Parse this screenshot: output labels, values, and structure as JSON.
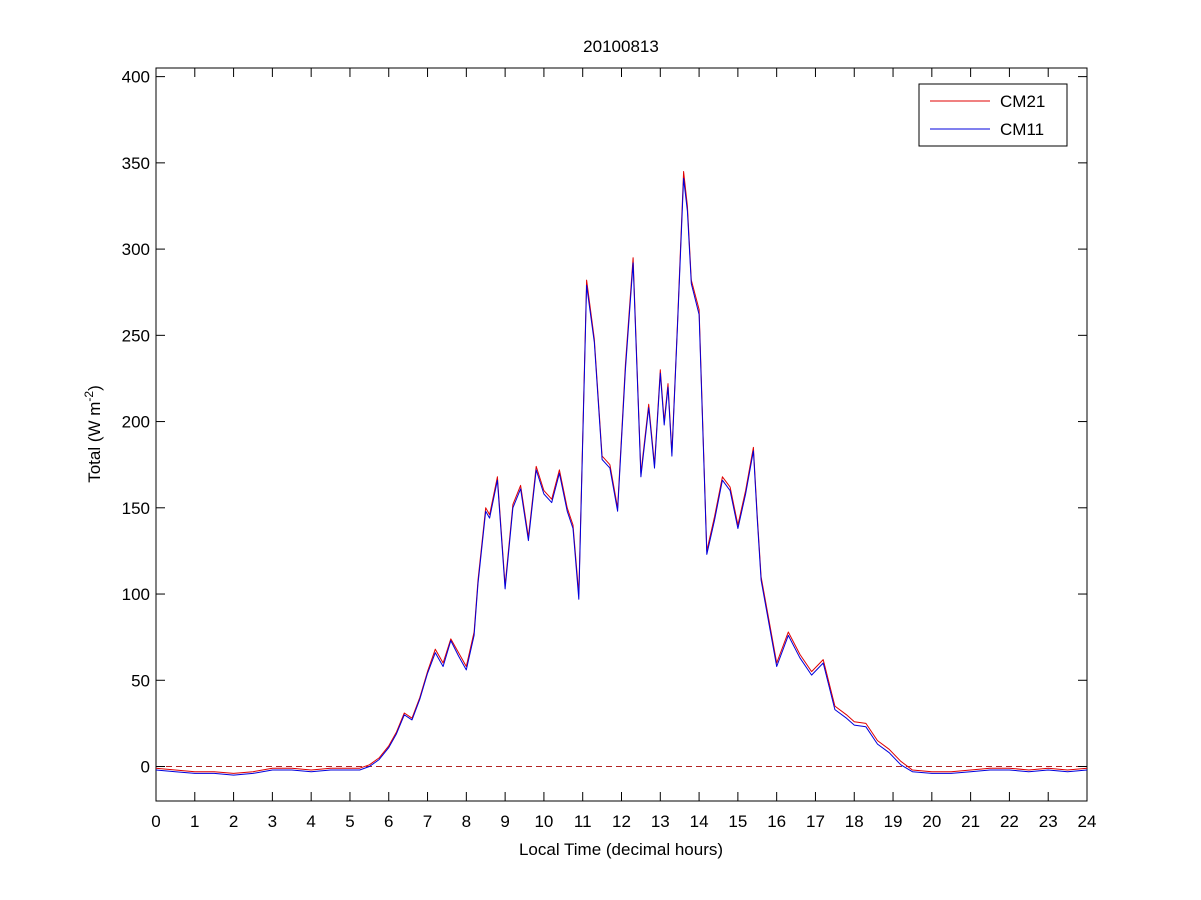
{
  "chart_data": {
    "type": "line",
    "title": "20100813",
    "xlabel": "Local Time (decimal hours)",
    "ylabel_main": "Total (W m",
    "ylabel_sup": "-2",
    "ylabel_close": ")",
    "xlim": [
      0,
      24
    ],
    "ylim": [
      -20,
      405
    ],
    "xticks": [
      0,
      1,
      2,
      3,
      4,
      5,
      6,
      7,
      8,
      9,
      10,
      11,
      12,
      13,
      14,
      15,
      16,
      17,
      18,
      19,
      20,
      21,
      22,
      23,
      24
    ],
    "yticks": [
      0,
      50,
      100,
      150,
      200,
      250,
      300,
      350,
      400
    ],
    "grid": false,
    "legend_position": "top-right",
    "reference_line": {
      "y": 0,
      "style": "dashed",
      "color": "#b22222"
    },
    "series": [
      {
        "name": "CM21",
        "color": "#e00000"
      },
      {
        "name": "CM11",
        "color": "#0000dd"
      }
    ],
    "x": [
      0,
      0.5,
      1,
      1.5,
      2,
      2.5,
      3,
      3.5,
      4,
      4.5,
      5,
      5.25,
      5.5,
      5.75,
      6,
      6.2,
      6.4,
      6.6,
      6.8,
      7,
      7.2,
      7.4,
      7.6,
      7.8,
      8,
      8.2,
      8.3,
      8.5,
      8.6,
      8.8,
      9,
      9.2,
      9.4,
      9.6,
      9.8,
      10,
      10.2,
      10.4,
      10.6,
      10.75,
      10.9,
      11.1,
      11.3,
      11.5,
      11.7,
      11.9,
      12.1,
      12.3,
      12.5,
      12.7,
      12.85,
      13,
      13.1,
      13.2,
      13.3,
      13.45,
      13.6,
      13.7,
      13.8,
      14,
      14.2,
      14.4,
      14.6,
      14.8,
      15,
      15.2,
      15.4,
      15.5,
      15.6,
      15.8,
      16,
      16.3,
      16.6,
      16.9,
      17.2,
      17.5,
      17.8,
      18,
      18.3,
      18.6,
      18.9,
      19.2,
      19.5,
      20,
      20.5,
      21,
      21.5,
      22,
      22.5,
      23,
      23.5,
      24
    ],
    "y_cm21": [
      -1,
      -2,
      -3,
      -3,
      -4,
      -3,
      -1,
      -1,
      -2,
      -1,
      -1,
      -1,
      1,
      5,
      12,
      20,
      31,
      28,
      40,
      55,
      68,
      60,
      74,
      66,
      58,
      78,
      108,
      150,
      146,
      168,
      105,
      152,
      163,
      133,
      174,
      160,
      155,
      172,
      150,
      140,
      100,
      282,
      248,
      180,
      175,
      150,
      233,
      295,
      170,
      210,
      175,
      230,
      200,
      222,
      182,
      260,
      345,
      325,
      282,
      265,
      125,
      145,
      168,
      162,
      140,
      160,
      185,
      145,
      110,
      85,
      60,
      78,
      65,
      55,
      62,
      35,
      30,
      26,
      25,
      15,
      10,
      3,
      -2,
      -3,
      -3,
      -2,
      -1,
      -1,
      -2,
      -1,
      -2,
      -1
    ],
    "y_cm11": [
      -2,
      -3,
      -4,
      -4,
      -5,
      -4,
      -2,
      -2,
      -3,
      -2,
      -2,
      -2,
      0,
      4,
      11,
      19,
      30,
      27,
      39,
      54,
      66,
      58,
      73,
      64,
      56,
      76,
      106,
      148,
      144,
      166,
      103,
      150,
      161,
      131,
      172,
      158,
      153,
      170,
      148,
      138,
      97,
      279,
      246,
      178,
      173,
      148,
      230,
      292,
      168,
      208,
      173,
      228,
      198,
      220,
      180,
      258,
      341,
      322,
      280,
      262,
      123,
      143,
      166,
      160,
      138,
      158,
      183,
      143,
      108,
      83,
      58,
      76,
      63,
      53,
      60,
      33,
      28,
      24,
      23,
      13,
      8,
      1,
      -3,
      -4,
      -4,
      -3,
      -2,
      -2,
      -3,
      -2,
      -3,
      -2
    ]
  }
}
